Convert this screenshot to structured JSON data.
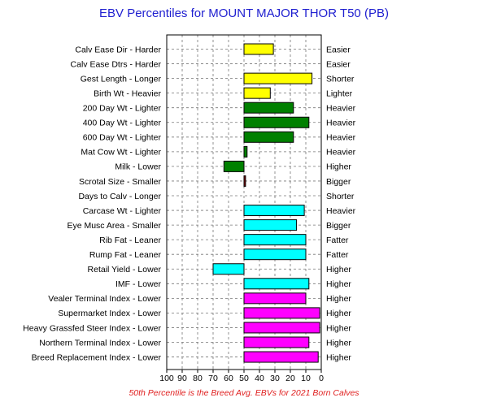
{
  "chart_data": {
    "type": "bar",
    "orientation": "horizontal",
    "title": "EBV Percentiles for MOUNT MAJOR THOR T50 (PB)",
    "footnote": "50th Percentile is the Breed Avg. EBVs for 2021 Born Calves",
    "xlim": [
      100,
      0
    ],
    "xticks": [
      "100",
      "90",
      "80",
      "70",
      "60",
      "50",
      "40",
      "30",
      "20",
      "10",
      "0"
    ],
    "baseline": 50,
    "grid": true,
    "categories": [
      "Calv Ease Dir - Harder",
      "Calv Ease Dtrs - Harder",
      "Gest Length - Longer",
      "Birth Wt - Heavier",
      "200 Day Wt - Lighter",
      "400 Day Wt - Lighter",
      "600 Day Wt - Lighter",
      "Mat Cow Wt - Lighter",
      "Milk - Lower",
      "Scrotal Size - Smaller",
      "Days to Calv - Longer",
      "Carcase Wt - Lighter",
      "Eye Musc Area - Smaller",
      "Rib Fat - Leaner",
      "Rump Fat - Leaner",
      "Retail Yield - Lower",
      "IMF - Lower",
      "Vealer Terminal Index - Lower",
      "Supermarket Index - Lower",
      "Heavy Grassfed Steer Index - Lower",
      "Northern Terminal Index - Lower",
      "Breed Replacement Index - Lower"
    ],
    "right_labels": [
      "Easier",
      "Easier",
      "Shorter",
      "Lighter",
      "Heavier",
      "Heavier",
      "Heavier",
      "Heavier",
      "Higher",
      "Bigger",
      "Shorter",
      "Heavier",
      "Bigger",
      "Fatter",
      "Fatter",
      "Higher",
      "Higher",
      "Higher",
      "Higher",
      "Higher",
      "Higher",
      "Higher"
    ],
    "values": [
      31,
      null,
      6,
      33,
      18,
      8,
      18,
      48,
      63,
      49,
      null,
      11,
      16,
      10,
      10,
      70,
      8,
      10,
      1,
      1,
      8,
      2
    ],
    "colors": [
      "#ffff00",
      "#ffff00",
      "#ffff00",
      "#ffff00",
      "#008000",
      "#008000",
      "#008000",
      "#008000",
      "#008000",
      "#8b0000",
      "#008000",
      "#00ffff",
      "#00ffff",
      "#00ffff",
      "#00ffff",
      "#00ffff",
      "#00ffff",
      "#ff00ff",
      "#ff00ff",
      "#ff00ff",
      "#ff00ff",
      "#ff00ff"
    ]
  }
}
